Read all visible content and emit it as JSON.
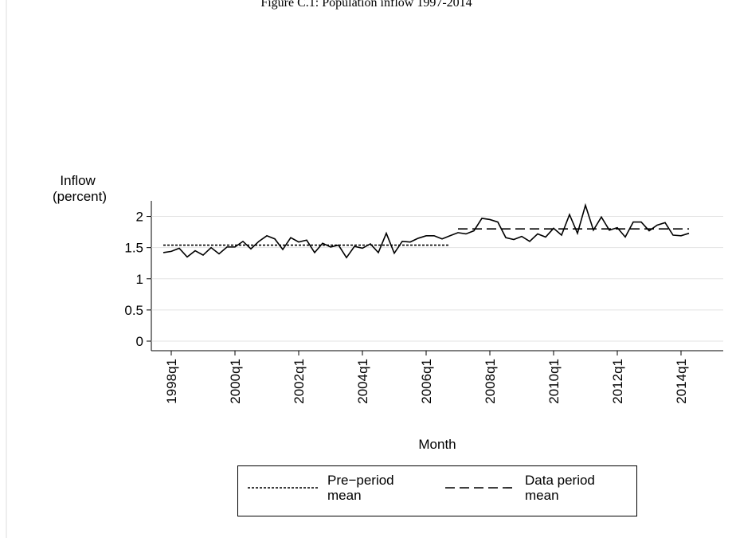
{
  "chart_data": {
    "type": "line",
    "title": "Figure C.1: Population inflow 1997-2014",
    "y_label": "Inflow (percent)",
    "x_label": "Month",
    "x": [
      "1997q4",
      "1998q1",
      "1998q2",
      "1998q3",
      "1998q4",
      "1999q1",
      "1999q2",
      "1999q3",
      "1999q4",
      "2000q1",
      "2000q2",
      "2000q3",
      "2000q4",
      "2001q1",
      "2001q2",
      "2001q3",
      "2001q4",
      "2002q1",
      "2002q2",
      "2002q3",
      "2002q4",
      "2003q1",
      "2003q2",
      "2003q3",
      "2003q4",
      "2004q1",
      "2004q2",
      "2004q3",
      "2004q4",
      "2005q1",
      "2005q2",
      "2005q3",
      "2005q4",
      "2006q1",
      "2006q2",
      "2006q3",
      "2006q4",
      "2007q1",
      "2007q2",
      "2007q3",
      "2007q4",
      "2008q1",
      "2008q2",
      "2008q3",
      "2008q4",
      "2009q1",
      "2009q2",
      "2009q3",
      "2009q4",
      "2010q1",
      "2010q2",
      "2010q3",
      "2010q4",
      "2011q1",
      "2011q2",
      "2011q3",
      "2011q4",
      "2012q1",
      "2012q2",
      "2012q3",
      "2012q4",
      "2013q1",
      "2013q2",
      "2013q3",
      "2013q4",
      "2014q1",
      "2014q2"
    ],
    "values": [
      1.42,
      1.44,
      1.49,
      1.35,
      1.45,
      1.38,
      1.5,
      1.4,
      1.51,
      1.51,
      1.6,
      1.48,
      1.6,
      1.69,
      1.64,
      1.47,
      1.66,
      1.59,
      1.62,
      1.42,
      1.57,
      1.51,
      1.54,
      1.34,
      1.52,
      1.49,
      1.56,
      1.42,
      1.73,
      1.41,
      1.6,
      1.59,
      1.65,
      1.69,
      1.69,
      1.64,
      1.69,
      1.74,
      1.72,
      1.77,
      1.97,
      1.95,
      1.91,
      1.66,
      1.63,
      1.68,
      1.6,
      1.72,
      1.67,
      1.81,
      1.7,
      2.03,
      1.73,
      2.18,
      1.78,
      1.99,
      1.78,
      1.82,
      1.67,
      1.91,
      1.91,
      1.77,
      1.86,
      1.9,
      1.7,
      1.69,
      1.73
    ],
    "color": "#000000",
    "series": [
      {
        "name": "Pre−period mean",
        "value": 1.54,
        "x_range": [
          "1997q4",
          "2006q4"
        ],
        "dash": "3,2",
        "color": "#000000"
      },
      {
        "name": "Data period mean",
        "value": 1.8,
        "x_range": [
          "2007q1",
          "2014q2"
        ],
        "dash": "12,6",
        "color": "#000000"
      }
    ],
    "ylim": [
      0,
      2.25
    ],
    "yticks": [
      0,
      0.5,
      1,
      1.5,
      2
    ],
    "xticks": [
      "1998q1",
      "2000q1",
      "2002q1",
      "2004q1",
      "2006q1",
      "2008q1",
      "2010q1",
      "2012q1",
      "2014q1"
    ],
    "grid": true
  }
}
